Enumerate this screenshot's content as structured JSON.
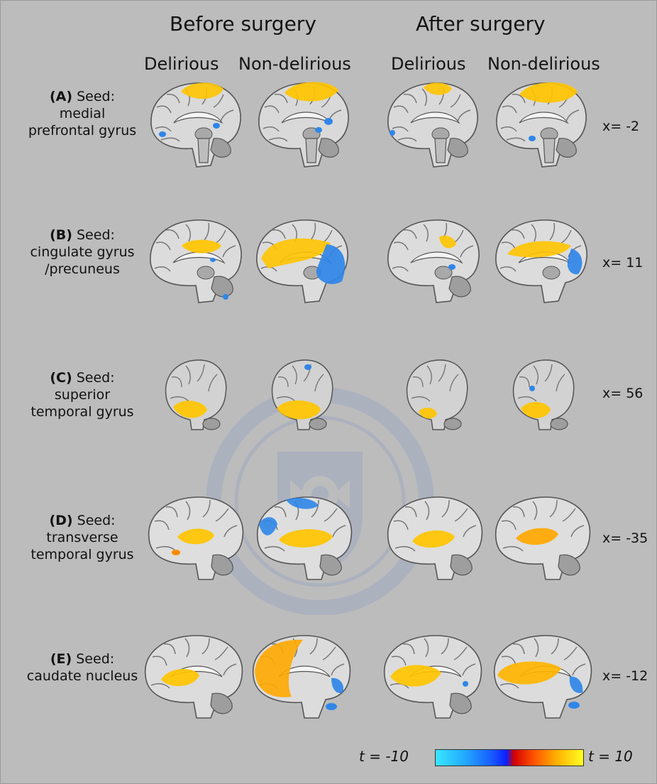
{
  "group_titles": {
    "before": "Before surgery",
    "after": "After surgery"
  },
  "column_titles": [
    "Delirious",
    "Non-delirious",
    "Delirious",
    "Non-delirious"
  ],
  "rows": [
    {
      "tag": "(A)",
      "seed": "Seed:",
      "lines": [
        "medial",
        "prefrontal gyrus"
      ],
      "coord": "x= -2"
    },
    {
      "tag": "(B)",
      "seed": "Seed:",
      "lines": [
        "cingulate gyrus",
        "/precuneus"
      ],
      "coord": "x= 11"
    },
    {
      "tag": "(C)",
      "seed": "Seed:",
      "lines": [
        "superior",
        "temporal gyrus"
      ],
      "coord": "x=  56"
    },
    {
      "tag": "(D)",
      "seed": "Seed:",
      "lines": [
        "transverse",
        "temporal gyrus"
      ],
      "coord": "x= -35"
    },
    {
      "tag": "(E)",
      "seed": "Seed:",
      "lines": [
        "caudate nucleus"
      ],
      "coord": "x= -12"
    }
  ],
  "colorbar": {
    "min_label": "t = -10",
    "max_label": "t = 10",
    "colors": [
      "#37e8ff",
      "#1860ff",
      "#0d20ff",
      "#d10000",
      "#ff5000",
      "#ffb000",
      "#ffff22"
    ]
  },
  "colors": {
    "background": "#bcbcbc",
    "positive": "#ffc400",
    "negative": "#2f86e8"
  }
}
